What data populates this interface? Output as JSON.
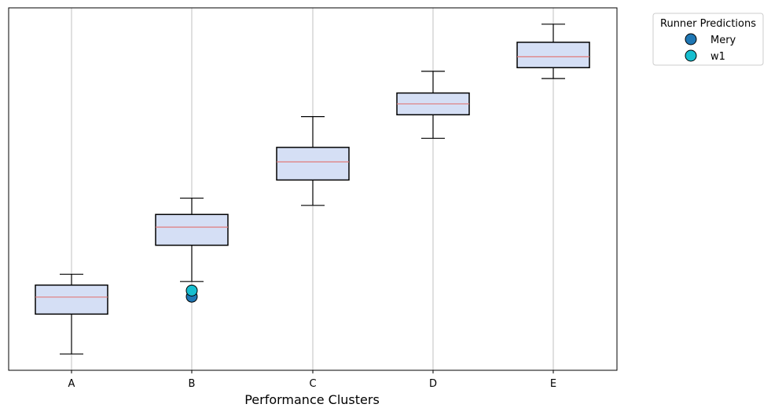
{
  "chart_data": {
    "type": "boxplot",
    "title": "",
    "xlabel": "Performance Clusters",
    "ylabel": "",
    "categories": [
      "A",
      "B",
      "C",
      "D",
      "E"
    ],
    "ylim": [
      0,
      100
    ],
    "grid": "vertical",
    "boxes": [
      {
        "category": "A",
        "whisker_low": 4.5,
        "q1": 15.5,
        "median": 20.2,
        "q3": 23.5,
        "whisker_high": 26.5
      },
      {
        "category": "B",
        "whisker_low": 24.5,
        "q1": 34.5,
        "median": 39.5,
        "q3": 43.0,
        "whisker_high": 47.5
      },
      {
        "category": "C",
        "whisker_low": 45.5,
        "q1": 52.5,
        "median": 57.5,
        "q3": 61.5,
        "whisker_high": 70.0
      },
      {
        "category": "D",
        "whisker_low": 64.0,
        "q1": 70.5,
        "median": 73.5,
        "q3": 76.5,
        "whisker_high": 82.5
      },
      {
        "category": "E",
        "whisker_low": 80.5,
        "q1": 83.5,
        "median": 86.5,
        "q3": 90.5,
        "whisker_high": 95.5
      }
    ],
    "series": [
      {
        "name": "Mery",
        "color": "#1f77b4",
        "points": [
          {
            "x": "B",
            "y": 20.3
          }
        ]
      },
      {
        "name": "w1",
        "color": "#17becf",
        "points": [
          {
            "x": "B",
            "y": 22.0
          }
        ]
      }
    ],
    "legend": {
      "title": "Runner Predictions",
      "position": "outside-top-right"
    },
    "box_fill": "#d5dff5",
    "median_color": "#e07b7b"
  }
}
